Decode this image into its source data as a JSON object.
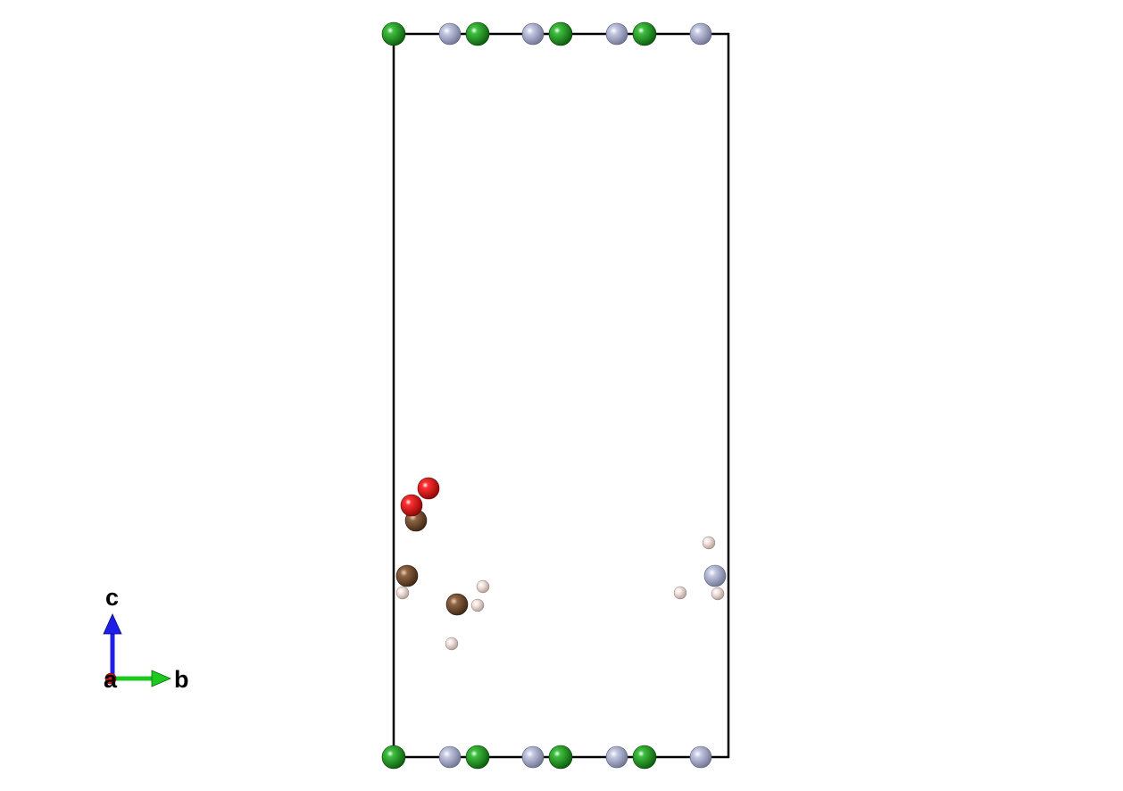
{
  "axes": {
    "labels": {
      "c": "c",
      "a": "a",
      "b": "b"
    },
    "colors": {
      "a": "#c81e1e",
      "b": "#1ec81e",
      "c": "#1e1ee6"
    }
  },
  "elements": {
    "green": {
      "color": "#1e9a1e"
    },
    "lavender": {
      "color": "#a6abc9"
    },
    "red": {
      "color": "#e01414"
    },
    "brown": {
      "color": "#7a5232"
    },
    "pink": {
      "color": "#ecd3cd"
    }
  }
}
